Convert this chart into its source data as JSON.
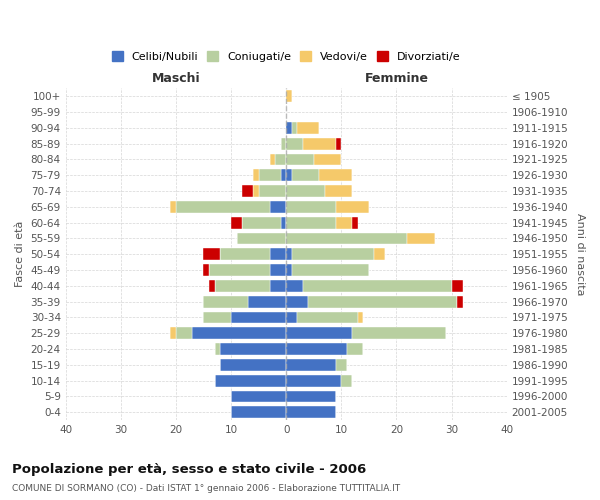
{
  "age_groups": [
    "100+",
    "95-99",
    "90-94",
    "85-89",
    "80-84",
    "75-79",
    "70-74",
    "65-69",
    "60-64",
    "55-59",
    "50-54",
    "45-49",
    "40-44",
    "35-39",
    "30-34",
    "25-29",
    "20-24",
    "15-19",
    "10-14",
    "5-9",
    "0-4"
  ],
  "birth_years": [
    "≤ 1905",
    "1906-1910",
    "1911-1915",
    "1916-1920",
    "1921-1925",
    "1926-1930",
    "1931-1935",
    "1936-1940",
    "1941-1945",
    "1946-1950",
    "1951-1955",
    "1956-1960",
    "1961-1965",
    "1966-1970",
    "1971-1975",
    "1976-1980",
    "1981-1985",
    "1986-1990",
    "1991-1995",
    "1996-2000",
    "2001-2005"
  ],
  "male": {
    "celibi": [
      0,
      0,
      0,
      0,
      0,
      1,
      0,
      3,
      1,
      0,
      3,
      3,
      3,
      7,
      10,
      17,
      12,
      12,
      13,
      10,
      10
    ],
    "coniugati": [
      0,
      0,
      0,
      1,
      2,
      4,
      5,
      17,
      7,
      9,
      9,
      11,
      10,
      8,
      5,
      3,
      1,
      0,
      0,
      0,
      0
    ],
    "vedovi": [
      0,
      0,
      0,
      0,
      1,
      1,
      1,
      1,
      0,
      0,
      0,
      0,
      0,
      0,
      0,
      1,
      0,
      0,
      0,
      0,
      0
    ],
    "divorziati": [
      0,
      0,
      0,
      0,
      0,
      0,
      2,
      0,
      2,
      0,
      3,
      1,
      1,
      0,
      0,
      0,
      0,
      0,
      0,
      0,
      0
    ]
  },
  "female": {
    "nubili": [
      0,
      0,
      1,
      0,
      0,
      1,
      0,
      0,
      0,
      0,
      1,
      1,
      3,
      4,
      2,
      12,
      11,
      9,
      10,
      9,
      9
    ],
    "coniugate": [
      0,
      0,
      1,
      3,
      5,
      5,
      7,
      9,
      9,
      22,
      15,
      14,
      27,
      27,
      11,
      17,
      3,
      2,
      2,
      0,
      0
    ],
    "vedove": [
      1,
      0,
      4,
      6,
      5,
      6,
      5,
      6,
      3,
      5,
      2,
      0,
      0,
      0,
      1,
      0,
      0,
      0,
      0,
      0,
      0
    ],
    "divorziate": [
      0,
      0,
      0,
      1,
      0,
      0,
      0,
      0,
      1,
      0,
      0,
      0,
      2,
      1,
      0,
      0,
      0,
      0,
      0,
      0,
      0
    ]
  },
  "colors": {
    "celibi_nubili": "#4472c4",
    "coniugati": "#b8cfa0",
    "vedovi": "#f5c96a",
    "divorziati": "#cc0000"
  },
  "title": "Popolazione per età, sesso e stato civile - 2006",
  "subtitle": "COMUNE DI SORMANO (CO) - Dati ISTAT 1° gennaio 2006 - Elaborazione TUTTITALIA.IT",
  "xlabel_left": "Maschi",
  "xlabel_right": "Femmine",
  "ylabel_left": "Fasce di età",
  "ylabel_right": "Anni di nascita",
  "xlim": 40,
  "legend_labels": [
    "Celibi/Nubili",
    "Coniugati/e",
    "Vedovi/e",
    "Divorziati/e"
  ],
  "bg_color": "#ffffff",
  "grid_color": "#cccccc"
}
